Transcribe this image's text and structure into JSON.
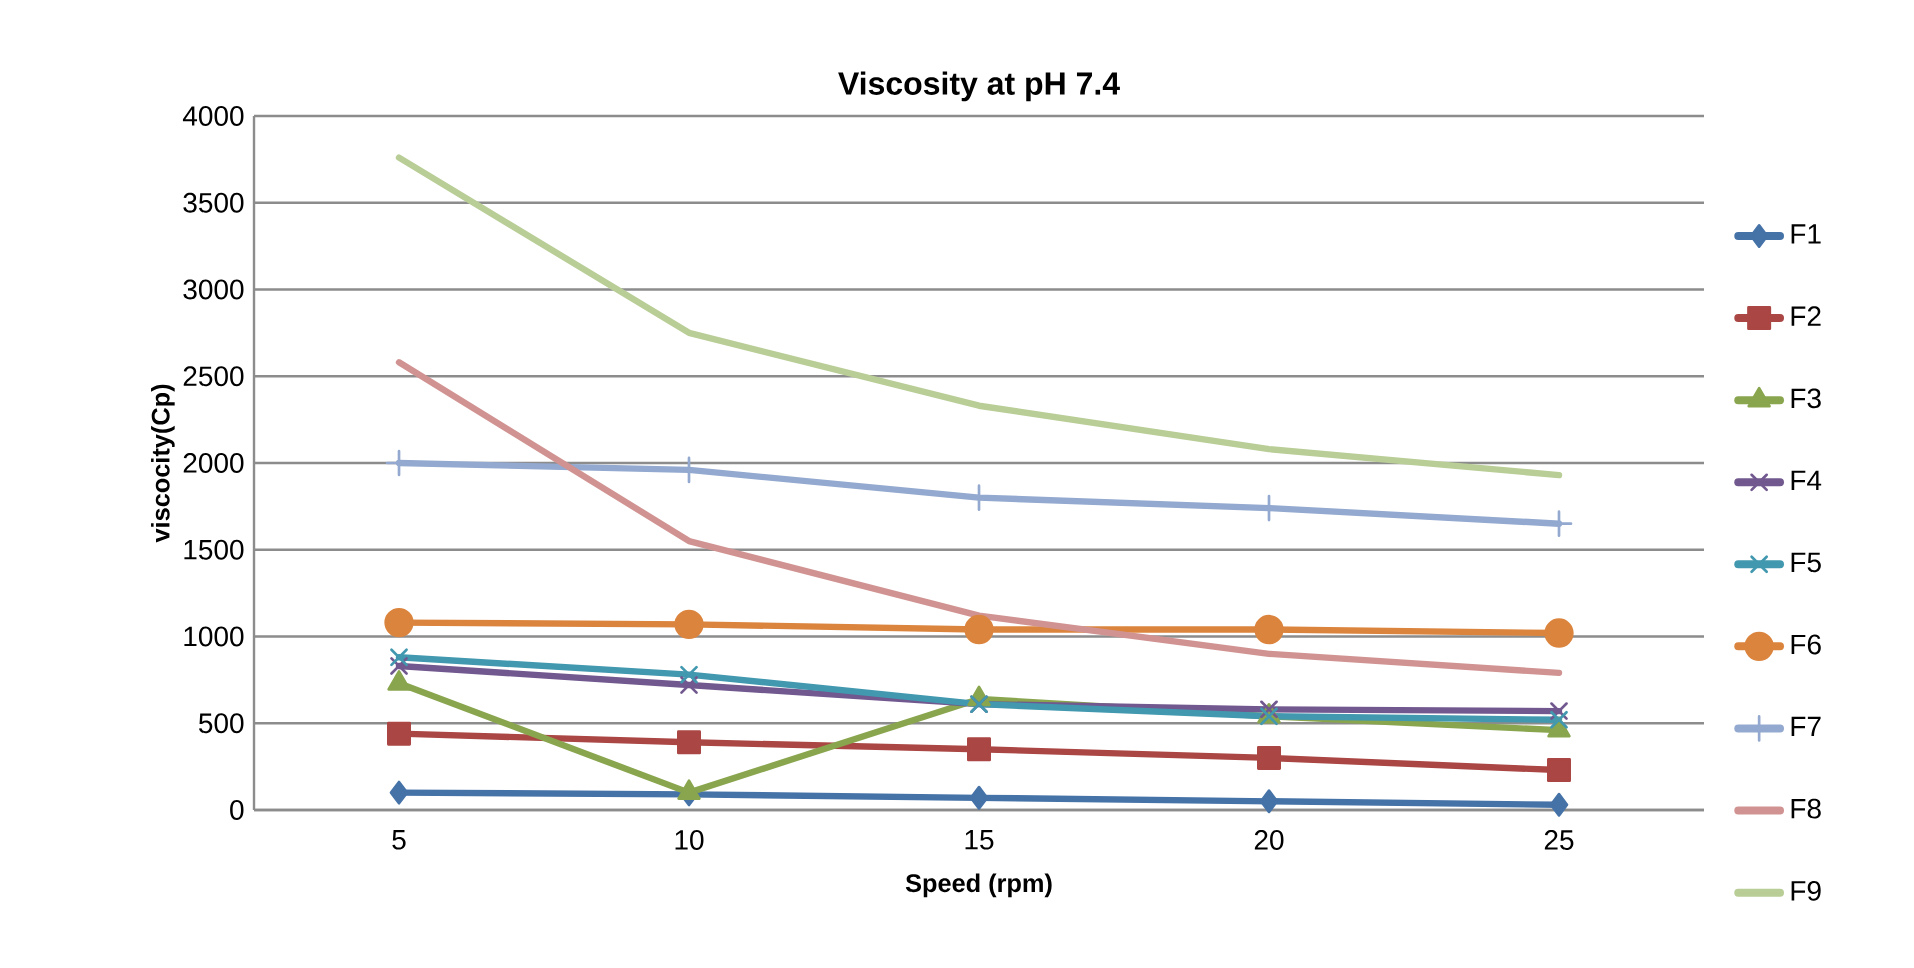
{
  "chart_data": {
    "type": "line",
    "title": "Viscosity at pH 7.4",
    "xlabel": "Speed (rpm)",
    "ylabel": "viscocity(Cp)",
    "categories": [
      "5",
      "10",
      "15",
      "20",
      "25"
    ],
    "series": [
      {
        "name": "F1",
        "color": "#4572a7",
        "marker": "diamond",
        "values": [
          100,
          90,
          70,
          50,
          30
        ]
      },
      {
        "name": "F2",
        "color": "#aa4643",
        "marker": "square",
        "values": [
          440,
          390,
          350,
          300,
          230
        ]
      },
      {
        "name": "F3",
        "color": "#89a54e",
        "marker": "triangle",
        "values": [
          730,
          100,
          640,
          540,
          460
        ]
      },
      {
        "name": "F4",
        "color": "#71588f",
        "marker": "cross",
        "values": [
          830,
          720,
          610,
          580,
          570
        ]
      },
      {
        "name": "F5",
        "color": "#4198af",
        "marker": "cross",
        "values": [
          880,
          780,
          610,
          540,
          520
        ]
      },
      {
        "name": "F6",
        "color": "#db843d",
        "marker": "circle",
        "values": [
          1080,
          1070,
          1040,
          1040,
          1020
        ]
      },
      {
        "name": "F7",
        "color": "#93a9cf",
        "marker": "plus",
        "values": [
          2000,
          1960,
          1800,
          1740,
          1650
        ]
      },
      {
        "name": "F8",
        "color": "#d19392",
        "marker": "none",
        "values": [
          2580,
          1550,
          1120,
          900,
          790
        ]
      },
      {
        "name": "F9",
        "color": "#b9cd96",
        "marker": "none",
        "values": [
          3760,
          2750,
          2330,
          2080,
          1930
        ]
      }
    ],
    "ylim": [
      0,
      4000
    ],
    "yticks": [
      0,
      500,
      1000,
      1500,
      2000,
      2500,
      3000,
      3500,
      4000
    ],
    "grid": "y",
    "legend": "right",
    "line_style": "solid"
  }
}
